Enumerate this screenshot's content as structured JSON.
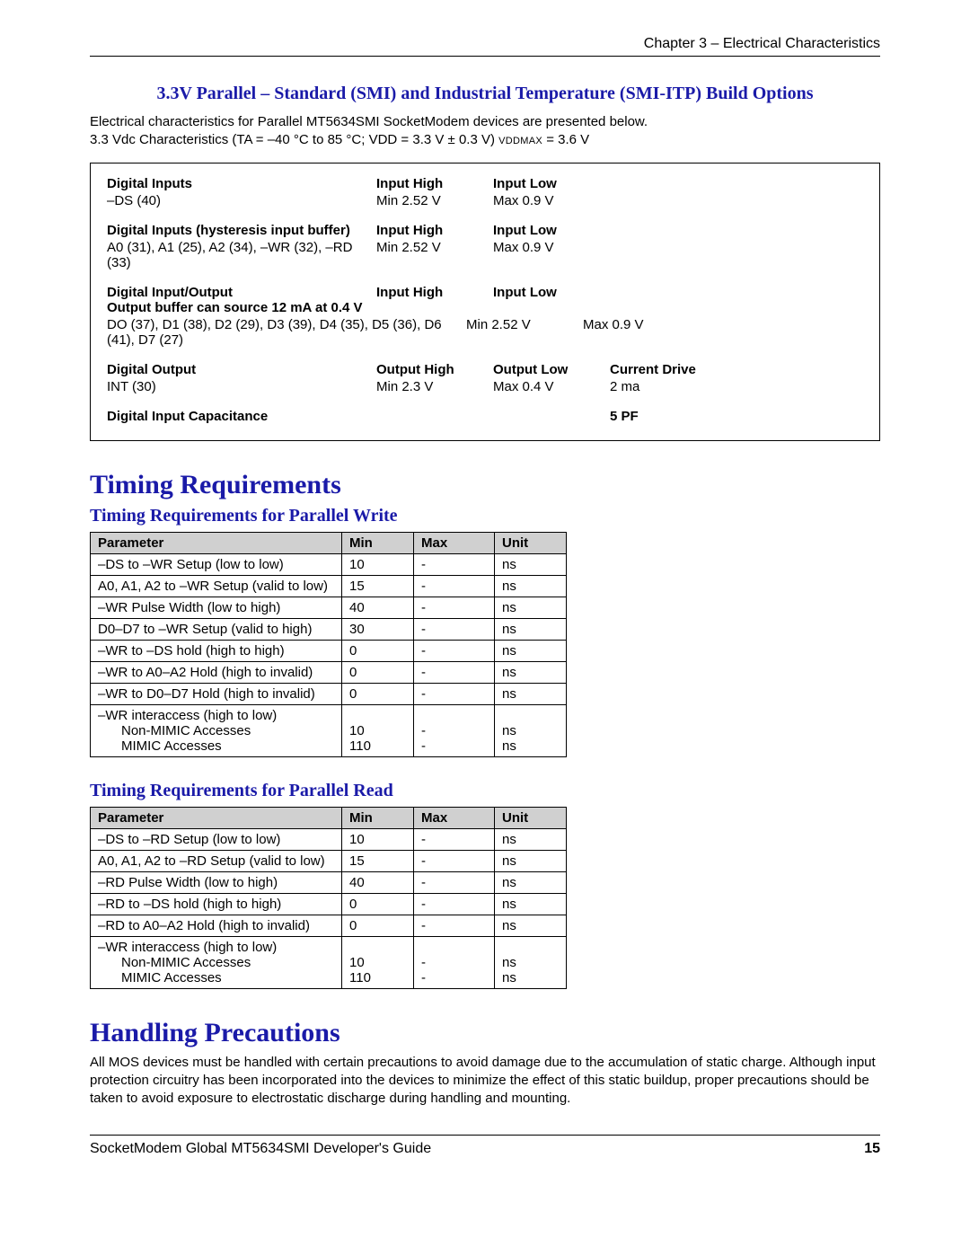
{
  "header": {
    "chapter": "Chapter 3 – Electrical Characteristics"
  },
  "section_title": "3.3V Parallel – Standard (SMI) and Industrial Temperature (SMI-ITP) Build Options",
  "intro1": "Electrical characteristics for Parallel MT5634SMI SocketModem devices are presented below.",
  "intro2": "3.3 Vdc Characteristics (TA = –40 °C to 85 °C; VDD = 3.3 V ± 0.3 V)  ",
  "intro2_small": "VDDMAX",
  "intro2_tail": " = 3.6 V",
  "elec": {
    "di_label": "Digital Inputs",
    "di_row": "–DS (40)",
    "ih": "Input High",
    "il": "Input Low",
    "ih_v": "Min 2.52 V",
    "il_v": "Max 0.9 V",
    "dih_label": "Digital Inputs (hysteresis input buffer)",
    "dih_row": "A0 (31), A1 (25), A2 (34), –WR (32), –RD (33)",
    "dio_label": "Digital Input/Output",
    "dio_sub": "Output buffer can source 12 mA at 0.4 V",
    "dio_row": "DO (37), D1 (38), D2 (29), D3 (39), D4 (35), D5 (36), D6 (41), D7 (27)",
    "do_label": "Digital Output",
    "do_row": "INT (30)",
    "oh": "Output High",
    "ol": "Output Low",
    "cd": "Current Drive",
    "oh_v": "Min 2.3 V",
    "ol_v": "Max 0.4 V",
    "cd_v": "2 ma",
    "cap_label": "Digital Input Capacitance",
    "cap_v": "5 PF"
  },
  "timing_heading": "Timing Requirements",
  "write_heading": "Timing Requirements for Parallel Write",
  "read_heading": "Timing Requirements for Parallel Read",
  "cols": {
    "param": "Parameter",
    "min": "Min",
    "max": "Max",
    "unit": "Unit"
  },
  "write_rows": [
    {
      "p": "–DS to –WR Setup (low to low)",
      "min": "10",
      "max": "-",
      "u": "ns"
    },
    {
      "p": "A0, A1, A2 to –WR Setup (valid to low)",
      "min": "15",
      "max": "-",
      "u": "ns"
    },
    {
      "p": "–WR Pulse Width (low to high)",
      "min": "40",
      "max": "-",
      "u": "ns"
    },
    {
      "p": "D0–D7 to –WR Setup (valid to high)",
      "min": "30",
      "max": "-",
      "u": "ns"
    },
    {
      "p": "–WR to –DS hold (high to high)",
      "min": "0",
      "max": "-",
      "u": "ns"
    },
    {
      "p": "–WR to A0–A2 Hold (high to invalid)",
      "min": "0",
      "max": "-",
      "u": "ns"
    },
    {
      "p": "–WR to D0–D7 Hold (high to invalid)",
      "min": "0",
      "max": "-",
      "u": "ns"
    }
  ],
  "write_last": {
    "p": "–WR interaccess (high to low)",
    "sub1": "Non-MIMIC Accesses",
    "min1": "10",
    "max1": "-",
    "u1": "ns",
    "sub2": "MIMIC Accesses",
    "min2": "110",
    "max2": "-",
    "u2": "ns"
  },
  "read_rows": [
    {
      "p": "–DS to –RD Setup (low to low)",
      "min": "10",
      "max": "-",
      "u": "ns"
    },
    {
      "p": "A0, A1, A2 to –RD Setup (valid to low)",
      "min": "15",
      "max": "-",
      "u": "ns"
    },
    {
      "p": "–RD Pulse Width (low to high)",
      "min": "40",
      "max": "-",
      "u": "ns"
    },
    {
      "p": "–RD to –DS hold (high to high)",
      "min": "0",
      "max": "-",
      "u": "ns"
    },
    {
      "p": "–RD to A0–A2 Hold (high to invalid)",
      "min": "0",
      "max": "-",
      "u": "ns"
    }
  ],
  "read_last": {
    "p": "–WR interaccess (high to low)",
    "sub1": "Non-MIMIC Accesses",
    "min1": "10",
    "max1": "-",
    "u1": "ns",
    "sub2": "MIMIC Accesses",
    "min2": "110",
    "max2": "-",
    "u2": "ns"
  },
  "handling_heading": "Handling Precautions",
  "handling_body": "All MOS devices must be handled with certain precautions to avoid damage due to the accumulation of static charge. Although input protection circuitry has been incorporated into the devices to minimize the effect of this static buildup, proper precautions should be taken to avoid exposure to electrostatic discharge during handling and mounting.",
  "footer": {
    "guide": "SocketModem Global MT5634SMI Developer's Guide",
    "page": "15"
  }
}
